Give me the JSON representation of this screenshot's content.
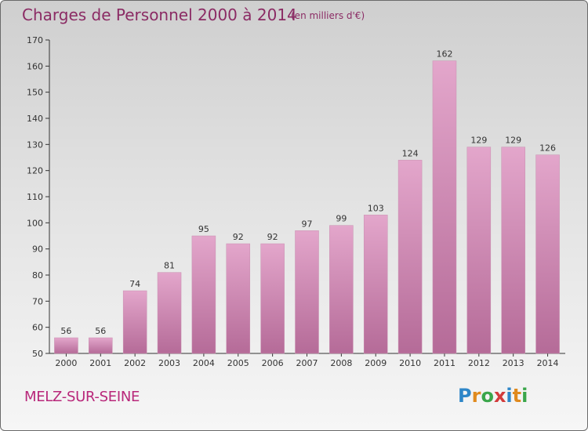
{
  "title": "Charges de Personnel 2000 à 2014",
  "subtitle": "(en milliers d'€)",
  "commune": "MELZ-SUR-SEINE",
  "logo": {
    "text": "Proxiti",
    "letters": [
      "P",
      "r",
      "o",
      "x",
      "i",
      "t",
      "i"
    ],
    "colors": [
      "#2e86c8",
      "#e08a1e",
      "#3aa64a",
      "#d23b3b",
      "#2e86c8",
      "#e08a1e",
      "#3aa64a"
    ]
  },
  "colors": {
    "bar_top": "#e3a6cb",
    "bar_bottom": "#b56b98",
    "text": "#8b2b64",
    "axis": "#333333"
  },
  "chart_data": {
    "type": "bar",
    "categories": [
      "2000",
      "2001",
      "2002",
      "2003",
      "2004",
      "2005",
      "2006",
      "2007",
      "2008",
      "2009",
      "2010",
      "2011",
      "2012",
      "2013",
      "2014"
    ],
    "values": [
      56,
      56,
      74,
      81,
      95,
      92,
      92,
      97,
      99,
      103,
      124,
      162,
      129,
      129,
      126
    ],
    "ylim": [
      50,
      170
    ],
    "yticks": [
      50,
      60,
      70,
      80,
      90,
      100,
      110,
      120,
      130,
      140,
      150,
      160,
      170
    ],
    "grid": false,
    "data_labels": true
  }
}
